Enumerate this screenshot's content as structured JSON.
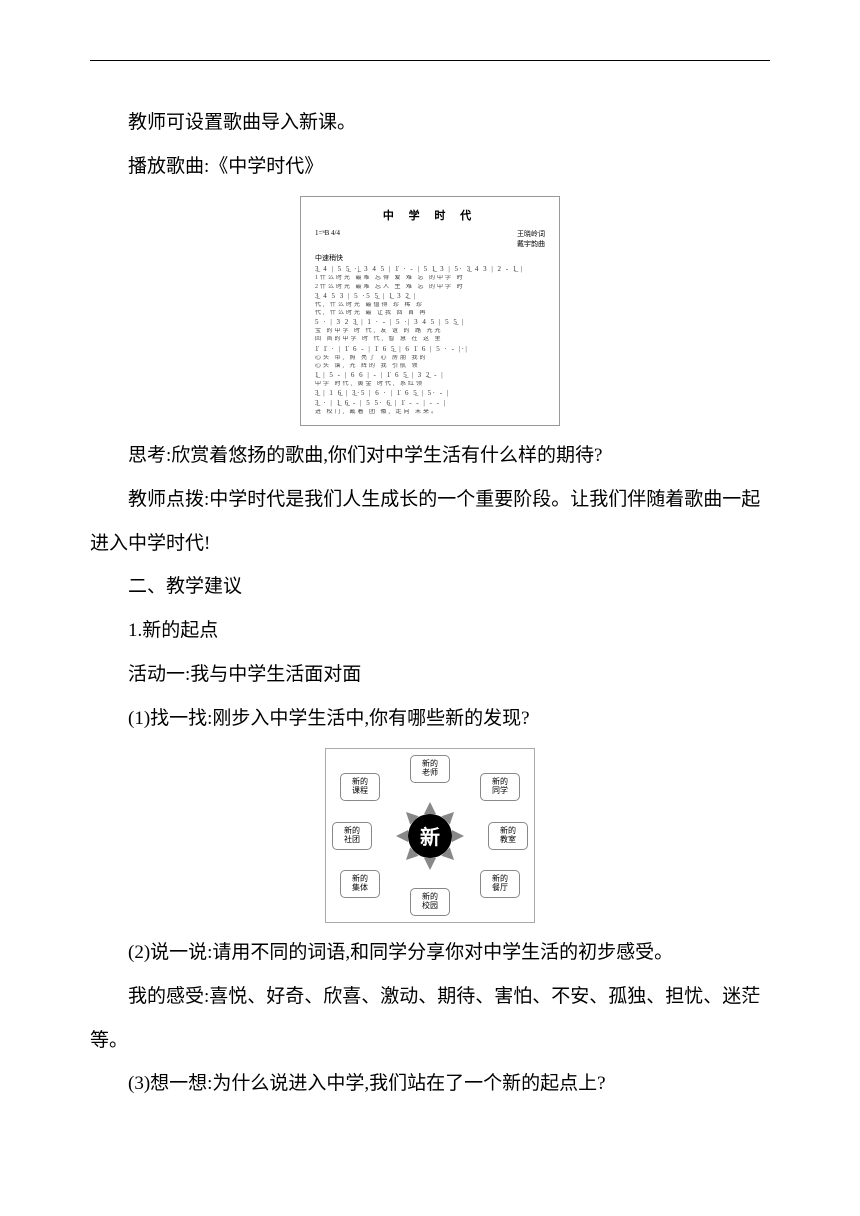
{
  "document": {
    "text_color": "#000000",
    "background": "#ffffff",
    "font_family": "SimSun",
    "paragraphs": {
      "p1": "教师可设置歌曲导入新课。",
      "p2": "播放歌曲:《中学时代》",
      "p3": "思考:欣赏着悠扬的歌曲,你们对中学生活有什么样的期待?",
      "p4": "教师点拨:中学时代是我们人生成长的一个重要阶段。让我们伴随着歌曲一起进入中学时代!",
      "p5": "二、教学建议",
      "p6": "1.新的起点",
      "p7": "活动一:我与中学生活面对面",
      "p8": "(1)找一找:刚步入中学生活中,你有哪些新的发现?",
      "p9": "(2)说一说:请用不同的词语,和同学分享你对中学生活的初步感受。",
      "p10": "我的感受:喜悦、好奇、欣喜、激动、期待、害怕、不安、孤独、担忧、迷茫等。",
      "p11": "(3)想一想:为什么说进入中学,我们站在了一个新的起点上?"
    }
  },
  "music_sheet": {
    "title": "中 学 时 代",
    "credits_left": "1=ᵇB 4/4",
    "credits_tempo": "中速稍快",
    "credits_right_1": "王晓岭词",
    "credits_right_2": "戴宇韵曲",
    "notation_lines": [
      "3̲ 4 | 5 5̲ ·|̲ 3 4 5 | 1̇ · - | 5 1̲ 3 | 5· 3̲ 4 3 | 2 - 1̲ |",
      "3̲ 4 5 3 | 5 ·5 5̲ | 1̲ 3 2̲ |",
      "5 · | 3 2 3̲ | 1 · - | 5 ·| 3 4 5 | 5 5̲ |",
      "1̇ 1̇ · | 1̇ 6 - | 1̇ 6 5̲ | 6 1̇ 6 | 5 · - |·|",
      "1̲ | 5 - | 6 6 | - | 1̇ 6 5̲ | 3 2̲ - |",
      "3̲ | 1 6̲ | 3̲·5 | 6 · | 1̇ 6 5̲ | 5· - |",
      "3̲ · | 1̲ 6̲ - | 5 5· 6̲ | 1̇ - - | - - |"
    ],
    "lyric_lines": [
      "1什么时光 最难 忘得 爱  难 忘 的中学  时",
      "2什么时光 最难 忘人 生  难 忘 的中学  时",
      "代,          什么时光 最值得  珍 稀  珍",
      "代,          什么时光 最 让我 回 首  再",
      "宝 的中学  时 代,     友 谊 的 路 光光",
      "回 首的中学 时 代,    智 慧  在 这 里",
      "心头  带,    照 亮了  心 房朋  我的",
      "心头  谱,    光 辉的  我 引航  领",
      "中学 时代, 黄金 时代, 系红领",
      "进 校门, 戴着 团 徽, 走向 未来。"
    ],
    "border_color": "#999999",
    "title_fontsize": 11,
    "note_fontsize": 7,
    "lyric_fontsize": 6
  },
  "diagram": {
    "center_label": "新",
    "center_bg": "#000000",
    "center_text_color": "#ffffff",
    "petal_border": "#888888",
    "arrow_color": "#888888",
    "petals": {
      "n": "新的\n老师",
      "ne": "新的\n同学",
      "e": "新的\n教室",
      "se": "新的\n餐厅",
      "s": "新的\n校园",
      "sw": "新的\n集体",
      "w": "新的\n社团",
      "nw": "新的\n课程",
      "extra": "……"
    }
  }
}
